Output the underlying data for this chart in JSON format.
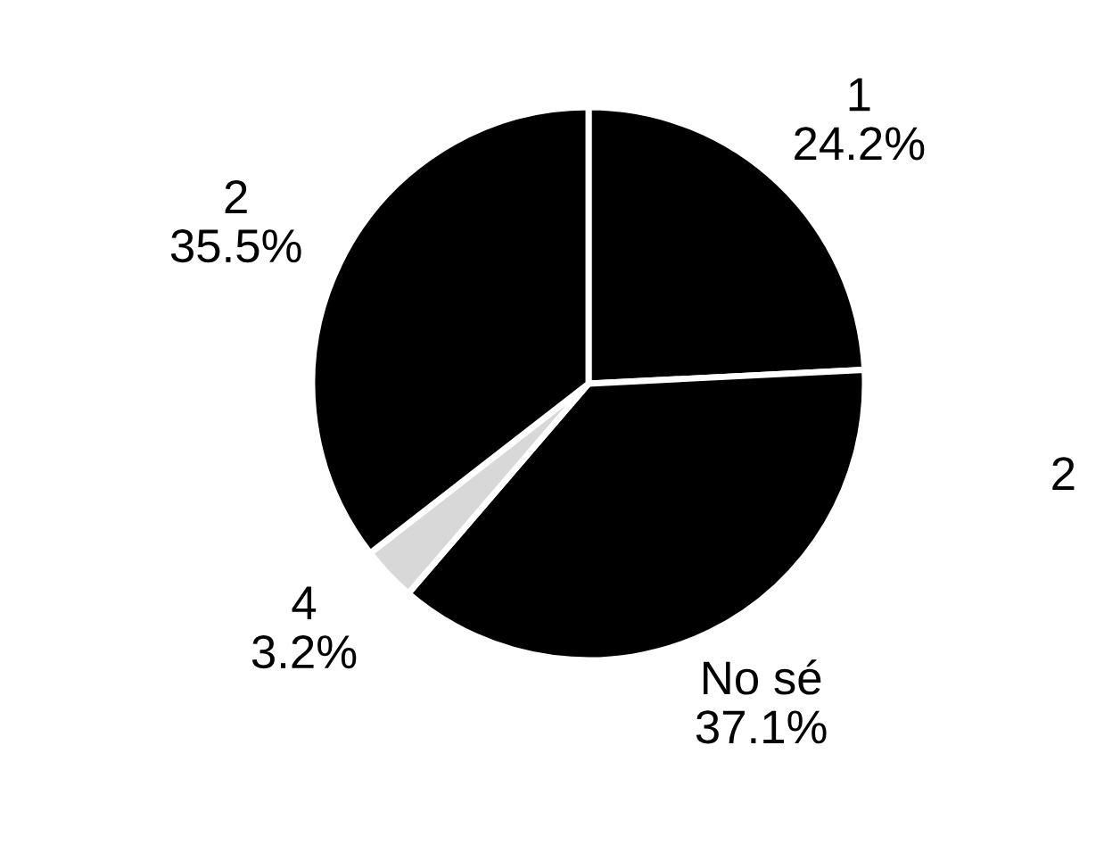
{
  "chart_data": {
    "type": "pie",
    "categories": [
      "1",
      "No sé",
      "4",
      "2"
    ],
    "values": [
      24.2,
      37.1,
      3.2,
      35.5
    ],
    "colors": [
      "#000000",
      "#000000",
      "#d8d8d8",
      "#000000"
    ],
    "value_labels": [
      "24.2%",
      "37.1%",
      "3.2%",
      "35.5%"
    ],
    "annotations": [
      "2"
    ]
  }
}
